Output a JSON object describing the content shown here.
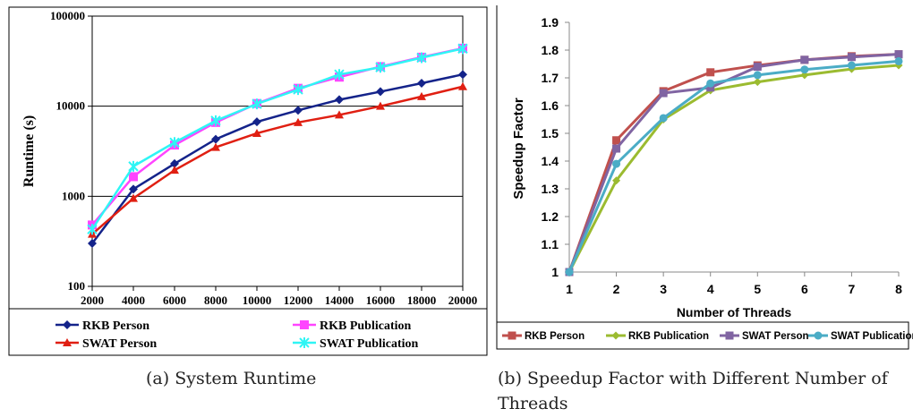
{
  "chart_data": [
    {
      "type": "line",
      "caption": "(a) System Runtime",
      "ylabel": "Runtime (s)",
      "xlabel": "",
      "yscale": "log",
      "ylim": [
        100,
        100000
      ],
      "yticks": [
        "100",
        "1000",
        "10000",
        "100000"
      ],
      "x": [
        "2000",
        "4000",
        "6000",
        "8000",
        "10000",
        "12000",
        "14000",
        "16000",
        "18000",
        "20000"
      ],
      "legend_position": "bottom",
      "series": [
        {
          "name": "RKB Person",
          "color": "#14238a",
          "marker": "diamond",
          "values": [
            300,
            1200,
            2300,
            4300,
            6700,
            9000,
            11800,
            14500,
            18000,
            22500
          ]
        },
        {
          "name": "RKB Publication",
          "color": "#ff44ff",
          "marker": "square",
          "values": [
            480,
            1650,
            3700,
            6600,
            10700,
            15800,
            21000,
            27500,
            35000,
            44000
          ]
        },
        {
          "name": "SWAT Person",
          "color": "#e01f12",
          "marker": "triangle",
          "values": [
            380,
            950,
            1950,
            3500,
            5000,
            6600,
            8000,
            10000,
            12800,
            16500
          ]
        },
        {
          "name": "SWAT Publication",
          "color": "#2ff5f5",
          "marker": "star",
          "values": [
            430,
            2150,
            3950,
            6900,
            10600,
            15300,
            22500,
            27000,
            34500,
            43500
          ]
        }
      ]
    },
    {
      "type": "line",
      "caption": "(b) Speedup Factor with Different Number of Threads",
      "ylabel": "Speedup Factor",
      "xlabel": "Number of Threads",
      "ylim": [
        1,
        1.9
      ],
      "yticks": [
        "1",
        "1.1",
        "1.2",
        "1.3",
        "1.4",
        "1.5",
        "1.6",
        "1.7",
        "1.8",
        "1.9"
      ],
      "x": [
        "1",
        "2",
        "3",
        "4",
        "5",
        "6",
        "7",
        "8"
      ],
      "legend_position": "bottom",
      "series": [
        {
          "name": "RKB Person",
          "color": "#c0504d",
          "marker": "square",
          "values": [
            1,
            1.475,
            1.652,
            1.72,
            1.745,
            1.765,
            1.778,
            1.785
          ]
        },
        {
          "name": "RKB Publication",
          "color": "#9bbb30",
          "marker": "diamond",
          "values": [
            1,
            1.33,
            1.55,
            1.655,
            1.685,
            1.71,
            1.732,
            1.745
          ]
        },
        {
          "name": "SWAT Person",
          "color": "#8064a2",
          "marker": "square",
          "values": [
            1,
            1.445,
            1.645,
            1.665,
            1.74,
            1.765,
            1.775,
            1.785
          ]
        },
        {
          "name": "SWAT Publication",
          "color": "#4bacc6",
          "marker": "circle",
          "values": [
            1,
            1.39,
            1.555,
            1.68,
            1.71,
            1.73,
            1.745,
            1.76
          ]
        }
      ]
    }
  ]
}
